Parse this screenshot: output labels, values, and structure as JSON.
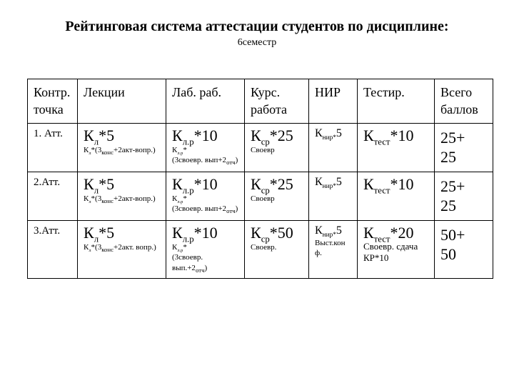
{
  "title": "Рейтинговая система аттестации студентов по дисциплине:",
  "subtitle": "6семестр",
  "table": {
    "columns": [
      "Контр. точка",
      "Лекции",
      "Лаб. раб.",
      "Курс. работа",
      "НИР",
      "Тестир.",
      "Всего баллов"
    ],
    "rows": [
      {
        "label": "1. Атт.",
        "lecture_main_html": "К<sub>л</sub>*5",
        "lecture_sub_html": "К<sub>л</sub>*(3<sub class='ssub'>конс</sub>+2акт-вопр.)",
        "lab_main_html": "К<sub>л.р</sub>*10",
        "lab_sub_html": "К<sub>л.р</sub>*<br>(3своевр. вып+2<sub class='ssub'>отч</sub>)",
        "course_main_html": "К<sub>ср</sub>*25",
        "course_sub_html": "Своевр",
        "nir_main_html": "К<sub>нир*</sub>5",
        "nir_sub_html": "",
        "test_main_html": "К<sub>тест</sub>*10",
        "test_sub_html": "",
        "total_html": "25+<br>25"
      },
      {
        "label": "2.Атт.",
        "lecture_main_html": "К<sub>л</sub>*5",
        "lecture_sub_html": "К<sub>л</sub>*(3<sub class='ssub'>конс</sub>+2акт-вопр.)",
        "lab_main_html": "К<sub>л.р</sub>*10",
        "lab_sub_html": "К<sub>л.р</sub>*<br>(3своевр. вып+2<sub class='ssub'>отч</sub>)",
        "course_main_html": "К<sub>ср</sub>*25",
        "course_sub_html": "Своевр",
        "nir_main_html": "К<sub>нир*</sub>5",
        "nir_sub_html": "",
        "test_main_html": "К<sub>тест</sub>*10",
        "test_sub_html": "",
        "total_html": "25+<br>25"
      },
      {
        "label": "3.Атт.",
        "lecture_main_html": "К<sub>л</sub>*5",
        "lecture_sub_html": "К<sub>л</sub>*(3<sub class='ssub'>конс</sub>+2акт. вопр.)",
        "lab_main_html": "К<sub>л.р</sub>*10",
        "lab_sub_html": "К<sub>л.р</sub>*<br>(3своевр. вып.+2<sub class='ssub'>отч</sub>)",
        "course_main_html": "К<sub>ср</sub>*50",
        "course_sub_html": "Своевр.",
        "nir_main_html": "К<sub>нир*</sub>5",
        "nir_sub_html": "Выст.кон<br>ф.",
        "test_main_html": "К<sub>тест</sub>*20",
        "test_sub_html": "Своевр. сдача КР*10",
        "total_html": "50+<br>50"
      }
    ]
  },
  "colors": {
    "text": "#000000",
    "background": "#ffffff",
    "border": "#000000"
  }
}
